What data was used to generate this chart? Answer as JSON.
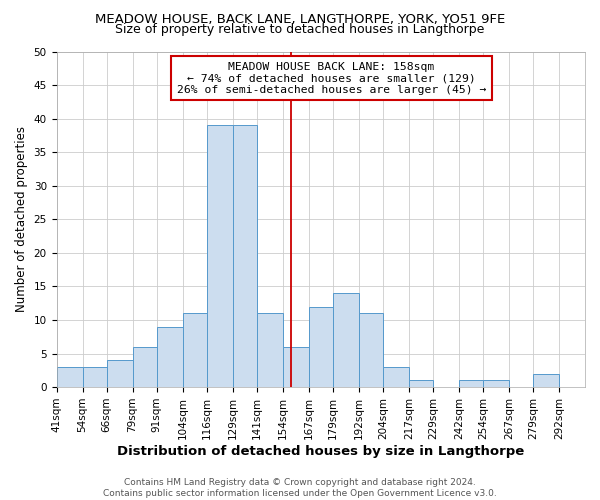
{
  "title": "MEADOW HOUSE, BACK LANE, LANGTHORPE, YORK, YO51 9FE",
  "subtitle": "Size of property relative to detached houses in Langthorpe",
  "xlabel": "Distribution of detached houses by size in Langthorpe",
  "ylabel": "Number of detached properties",
  "bin_labels": [
    "41sqm",
    "54sqm",
    "66sqm",
    "79sqm",
    "91sqm",
    "104sqm",
    "116sqm",
    "129sqm",
    "141sqm",
    "154sqm",
    "167sqm",
    "179sqm",
    "192sqm",
    "204sqm",
    "217sqm",
    "229sqm",
    "242sqm",
    "254sqm",
    "267sqm",
    "279sqm",
    "292sqm"
  ],
  "bin_edges": [
    41,
    54,
    66,
    79,
    91,
    104,
    116,
    129,
    141,
    154,
    167,
    179,
    192,
    204,
    217,
    229,
    242,
    254,
    267,
    279,
    292
  ],
  "bar_heights": [
    3,
    3,
    4,
    6,
    9,
    11,
    39,
    39,
    11,
    6,
    12,
    14,
    11,
    3,
    1,
    0,
    1,
    1,
    0,
    2
  ],
  "bar_color": "#ccddef",
  "bar_edge_color": "#5599cc",
  "reference_line_x": 158,
  "reference_line_color": "#cc0000",
  "ylim": [
    0,
    50
  ],
  "yticks": [
    0,
    5,
    10,
    15,
    20,
    25,
    30,
    35,
    40,
    45,
    50
  ],
  "annotation_title": "MEADOW HOUSE BACK LANE: 158sqm",
  "annotation_line1": "← 74% of detached houses are smaller (129)",
  "annotation_line2": "26% of semi-detached houses are larger (45) →",
  "annotation_box_color": "#ffffff",
  "annotation_box_edge": "#cc0000",
  "footer_line1": "Contains HM Land Registry data © Crown copyright and database right 2024.",
  "footer_line2": "Contains public sector information licensed under the Open Government Licence v3.0.",
  "bg_color": "#ffffff",
  "plot_bg_color": "#ffffff",
  "title_fontsize": 9.5,
  "subtitle_fontsize": 9,
  "xlabel_fontsize": 9.5,
  "ylabel_fontsize": 8.5,
  "tick_fontsize": 7.5,
  "footer_fontsize": 6.5
}
